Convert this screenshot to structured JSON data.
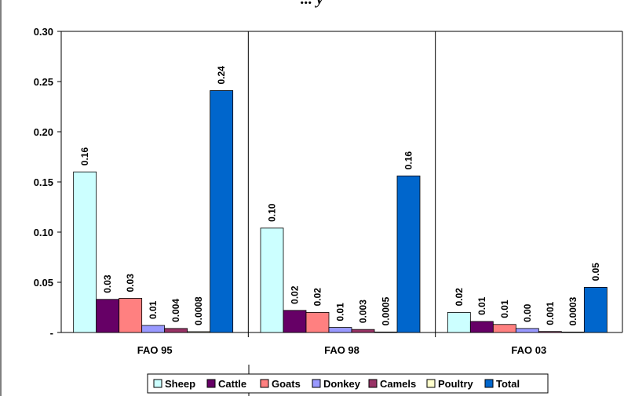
{
  "chart_data": {
    "type": "bar",
    "title": "... y",
    "categories": [
      "FAO 95",
      "FAO 98",
      "FAO 03"
    ],
    "series": [
      {
        "name": "Sheep",
        "color": "#ccffff",
        "values": [
          0.16,
          0.104,
          0.02
        ],
        "labels": [
          "0.16",
          "0.10",
          "0.02"
        ]
      },
      {
        "name": "Cattle",
        "color": "#660066",
        "values": [
          0.033,
          0.022,
          0.011
        ],
        "labels": [
          "0.03",
          "0.02",
          "0.01"
        ]
      },
      {
        "name": "Goats",
        "color": "#ff8080",
        "values": [
          0.034,
          0.02,
          0.008
        ],
        "labels": [
          "0.03",
          "0.02",
          "0.01"
        ]
      },
      {
        "name": "Donkey",
        "color": "#9999ff",
        "values": [
          0.007,
          0.005,
          0.004
        ],
        "labels": [
          "0.01",
          "0.01",
          "0.00"
        ]
      },
      {
        "name": "Camels",
        "color": "#993366",
        "values": [
          0.004,
          0.003,
          0.001
        ],
        "labels": [
          "0.004",
          "0.003",
          "0.001"
        ]
      },
      {
        "name": "Poultry",
        "color": "#ffffcc",
        "values": [
          0.0008,
          0.0005,
          0.0003
        ],
        "labels": [
          "0.0008",
          "0.0005",
          "0.0003"
        ]
      },
      {
        "name": "Total",
        "color": "#0066cc",
        "values": [
          0.241,
          0.156,
          0.045
        ],
        "labels": [
          "0.24",
          "0.16",
          "0.05"
        ]
      }
    ],
    "yticks": [
      {
        "value": 0.3,
        "label": "0.30"
      },
      {
        "value": 0.25,
        "label": "0.25"
      },
      {
        "value": 0.2,
        "label": "0.20"
      },
      {
        "value": 0.15,
        "label": "0.15"
      },
      {
        "value": 0.1,
        "label": "0.10"
      },
      {
        "value": 0.05,
        "label": "0.05"
      },
      {
        "value": 0,
        "label": "-"
      }
    ],
    "ylim": [
      0,
      0.3
    ],
    "grid": "vertical category separators",
    "legend_position": "bottom"
  }
}
